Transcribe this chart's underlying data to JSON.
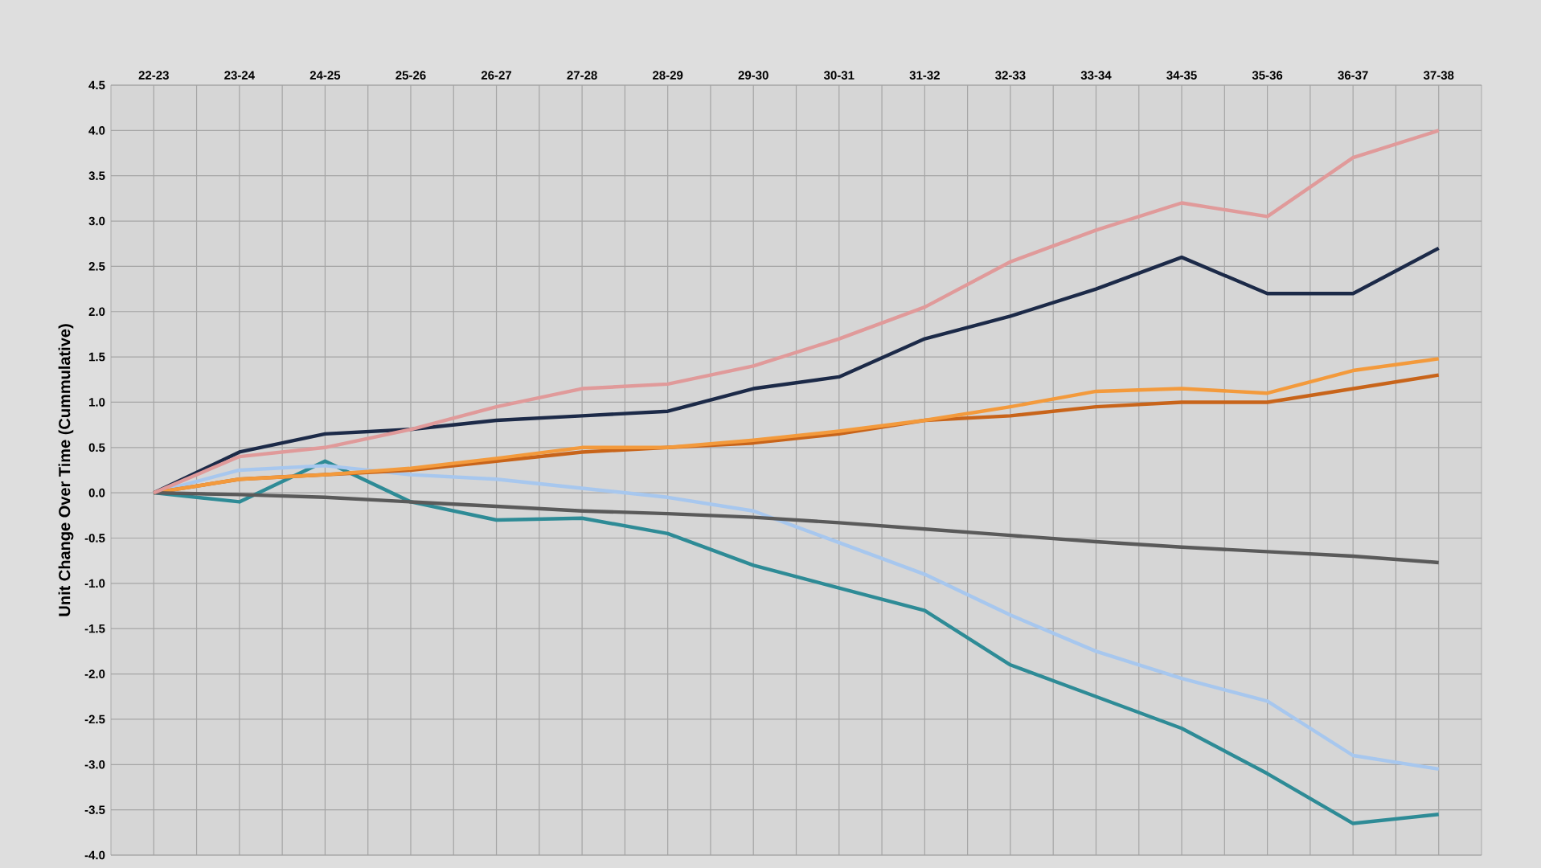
{
  "chart_data": {
    "type": "line",
    "ylabel": "Unit Change Over Time (Cummulative)",
    "categories": [
      "22-23",
      "23-24",
      "24-25",
      "25-26",
      "26-27",
      "27-28",
      "28-29",
      "29-30",
      "30-31",
      "31-32",
      "32-33",
      "33-34",
      "34-35",
      "35-36",
      "36-37",
      "37-38"
    ],
    "ylim": [
      -4.0,
      4.5
    ],
    "yticks": [
      {
        "value": -4.0,
        "label": "-4.0"
      },
      {
        "value": -3.5,
        "label": "-3.5"
      },
      {
        "value": -3.0,
        "label": "-3.0"
      },
      {
        "value": -2.5,
        "label": "-2.5"
      },
      {
        "value": -2.0,
        "label": "-2.0"
      },
      {
        "value": -1.5,
        "label": "-1.5"
      },
      {
        "value": -1.0,
        "label": "-1.0"
      },
      {
        "value": -0.5,
        "label": "-0.5"
      },
      {
        "value": 0.0,
        "label": "0.0"
      },
      {
        "value": 0.5,
        "label": "0.5"
      },
      {
        "value": 1.0,
        "label": "1.0"
      },
      {
        "value": 1.5,
        "label": "1.5"
      },
      {
        "value": 2.0,
        "label": "2.0"
      },
      {
        "value": 2.5,
        "label": "2.5"
      },
      {
        "value": 3.0,
        "label": "3.0"
      },
      {
        "value": 3.5,
        "label": "3.5"
      },
      {
        "value": 4.0,
        "label": "4.0"
      },
      {
        "value": 4.5,
        "label": "4.5"
      }
    ],
    "grid": true,
    "series": [
      {
        "color": "#2e8b96",
        "values": [
          0,
          -0.1,
          0.35,
          -0.1,
          -0.3,
          -0.28,
          -0.45,
          -0.8,
          -1.05,
          -1.3,
          -1.9,
          -2.25,
          -2.6,
          -3.1,
          -3.65,
          -3.55
        ]
      },
      {
        "color": "#a7c7ee",
        "values": [
          0,
          0.25,
          0.3,
          0.2,
          0.15,
          0.05,
          -0.05,
          -0.2,
          -0.55,
          -0.9,
          -1.35,
          -1.75,
          -2.05,
          -2.3,
          -2.9,
          -3.05
        ]
      },
      {
        "color": "#1c2a48",
        "values": [
          0,
          0.45,
          0.65,
          0.7,
          0.8,
          0.85,
          0.9,
          1.15,
          1.28,
          1.7,
          1.95,
          2.25,
          2.6,
          2.2,
          2.2,
          2.7
        ]
      },
      {
        "color": "#c8641a",
        "values": [
          0,
          0.15,
          0.2,
          0.25,
          0.35,
          0.45,
          0.5,
          0.55,
          0.65,
          0.8,
          0.85,
          0.95,
          1.0,
          1.0,
          1.15,
          1.3
        ]
      },
      {
        "color": "#f39a3c",
        "values": [
          0,
          0.15,
          0.2,
          0.27,
          0.38,
          0.5,
          0.5,
          0.58,
          0.68,
          0.8,
          0.95,
          1.12,
          1.15,
          1.1,
          1.35,
          1.48
        ]
      },
      {
        "color": "#5a5a5a",
        "values": [
          0,
          -0.02,
          -0.05,
          -0.1,
          -0.15,
          -0.2,
          -0.23,
          -0.27,
          -0.33,
          -0.4,
          -0.47,
          -0.54,
          -0.6,
          -0.65,
          -0.7,
          -0.77
        ]
      },
      {
        "color": "#e09a9a",
        "values": [
          0,
          0.4,
          0.5,
          0.7,
          0.95,
          1.15,
          1.2,
          1.4,
          1.7,
          2.05,
          2.55,
          2.9,
          3.2,
          3.05,
          3.7,
          4.0
        ]
      }
    ]
  }
}
